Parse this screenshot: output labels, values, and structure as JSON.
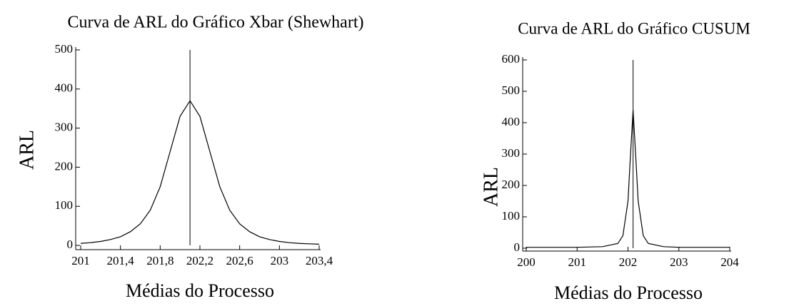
{
  "chart_data": [
    {
      "type": "line",
      "title": "Curva de ARL do Gráfico Xbar (Shewhart)",
      "xlabel": "Médias do Processo",
      "ylabel": "ARL",
      "x": [
        201.0,
        201.1,
        201.2,
        201.3,
        201.4,
        201.5,
        201.6,
        201.7,
        201.8,
        201.9,
        202.0,
        202.1,
        202.2,
        202.3,
        202.4,
        202.5,
        202.6,
        202.7,
        202.8,
        202.9,
        203.0,
        203.1,
        203.2,
        203.3,
        203.4
      ],
      "series": [
        {
          "color": "#000000",
          "values": [
            5,
            7,
            10,
            15,
            22,
            35,
            55,
            90,
            150,
            240,
            330,
            370,
            330,
            240,
            150,
            90,
            55,
            35,
            22,
            15,
            10,
            7,
            5,
            4,
            3
          ]
        }
      ],
      "reference_line": {
        "x": 202.1,
        "y": 500
      },
      "xlim": [
        201,
        203.4
      ],
      "xticks": [
        201,
        {
          "value": 201.4,
          "label": "201,4"
        },
        {
          "value": 201.8,
          "label": "201,8"
        },
        {
          "value": 202.2,
          "label": "202,2"
        },
        {
          "value": 202.6,
          "label": "202,6"
        },
        203,
        {
          "value": 203.4,
          "label": "203,4"
        }
      ],
      "ylim": [
        0,
        500
      ],
      "yticks": [
        0,
        100,
        200,
        300,
        400,
        500
      ]
    },
    {
      "type": "line",
      "title": "Curva de ARL do Gráfico CUSUM",
      "xlabel": "Médias do Processo",
      "ylabel": "ARL",
      "x": [
        200,
        201,
        201.5,
        201.8,
        201.9,
        202,
        202.05,
        202.1,
        202.15,
        202.2,
        202.3,
        202.4,
        202.7,
        203,
        204
      ],
      "series": [
        {
          "color": "#000000",
          "values": [
            3,
            3,
            5,
            15,
            40,
            150,
            300,
            440,
            300,
            150,
            40,
            15,
            5,
            3,
            3
          ]
        }
      ],
      "reference_line": {
        "x": 202.1,
        "y": 600
      },
      "xlim": [
        200,
        204
      ],
      "xticks": [
        200,
        201,
        202,
        203,
        204
      ],
      "ylim": [
        0,
        600
      ],
      "yticks": [
        0,
        100,
        200,
        300,
        400,
        500,
        600
      ]
    }
  ]
}
